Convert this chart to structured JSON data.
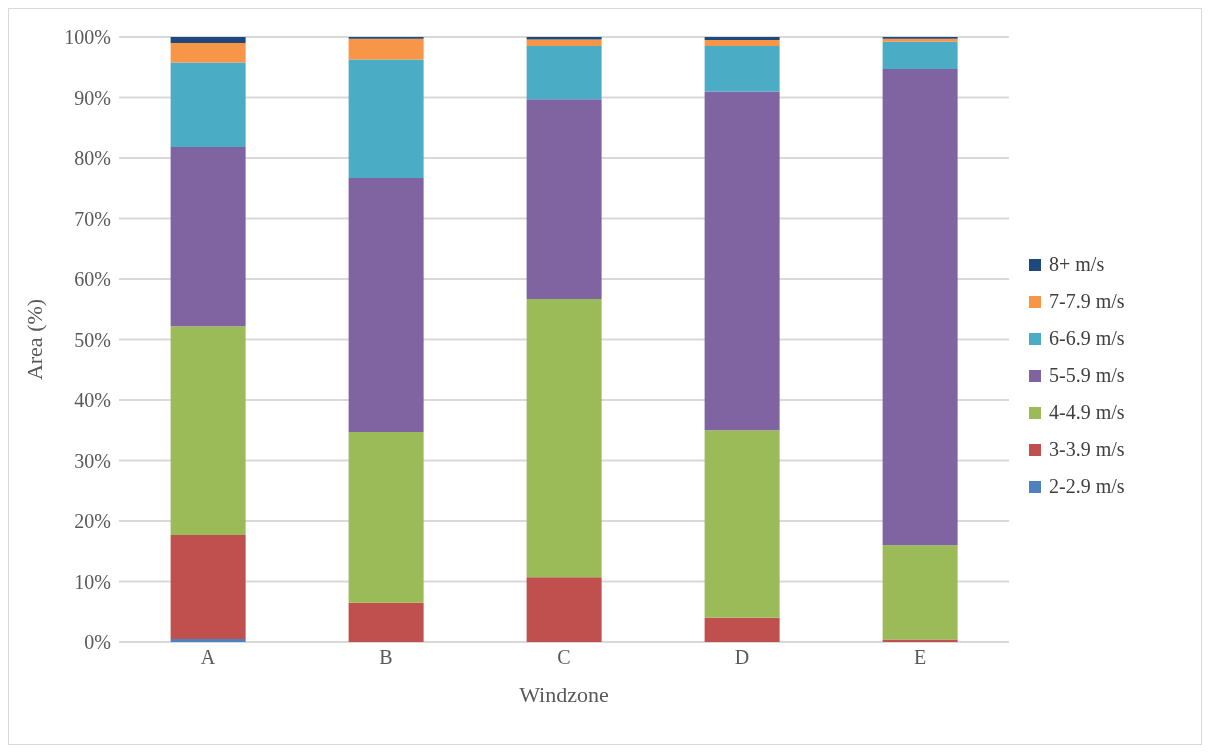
{
  "chart_data": {
    "type": "bar",
    "stacked": true,
    "xlabel": "Windzone",
    "ylabel": "Area (%)",
    "categories": [
      "A",
      "B",
      "C",
      "D",
      "E"
    ],
    "series": [
      {
        "name": "2-2.9 m/s",
        "color": "#4f81bd",
        "values": [
          0.5,
          0,
          0,
          0,
          0
        ]
      },
      {
        "name": "3-3.9 m/s",
        "color": "#c0504d",
        "values": [
          17.2,
          6.5,
          10.7,
          4.0,
          0.4
        ]
      },
      {
        "name": "4-4.9 m/s",
        "color": "#9bbb59",
        "values": [
          34.5,
          28.2,
          46.0,
          31.0,
          15.6
        ]
      },
      {
        "name": "5-5.9 m/s",
        "color": "#8064a2",
        "values": [
          29.6,
          42.0,
          33.0,
          56.0,
          78.7
        ]
      },
      {
        "name": "6-6.9 m/s",
        "color": "#4bacc6",
        "values": [
          14.0,
          19.6,
          8.8,
          7.5,
          4.5
        ]
      },
      {
        "name": "7-7.9 m/s",
        "color": "#f79646",
        "values": [
          3.2,
          3.4,
          1.1,
          1.0,
          0.5
        ]
      },
      {
        "name": "8+ m/s",
        "color": "#1f497d",
        "values": [
          1.0,
          0.3,
          0.4,
          0.5,
          0.3
        ]
      }
    ],
    "ylim": [
      0,
      100
    ],
    "yticks": [
      {
        "value": 0,
        "label": "0%"
      },
      {
        "value": 10,
        "label": "10%"
      },
      {
        "value": 20,
        "label": "20%"
      },
      {
        "value": 30,
        "label": "30%"
      },
      {
        "value": 40,
        "label": "40%"
      },
      {
        "value": 50,
        "label": "50%"
      },
      {
        "value": 60,
        "label": "60%"
      },
      {
        "value": 70,
        "label": "70%"
      },
      {
        "value": 80,
        "label": "80%"
      },
      {
        "value": 90,
        "label": "90%"
      },
      {
        "value": 100,
        "label": "100%"
      }
    ],
    "grid": "y",
    "legend": "right"
  }
}
